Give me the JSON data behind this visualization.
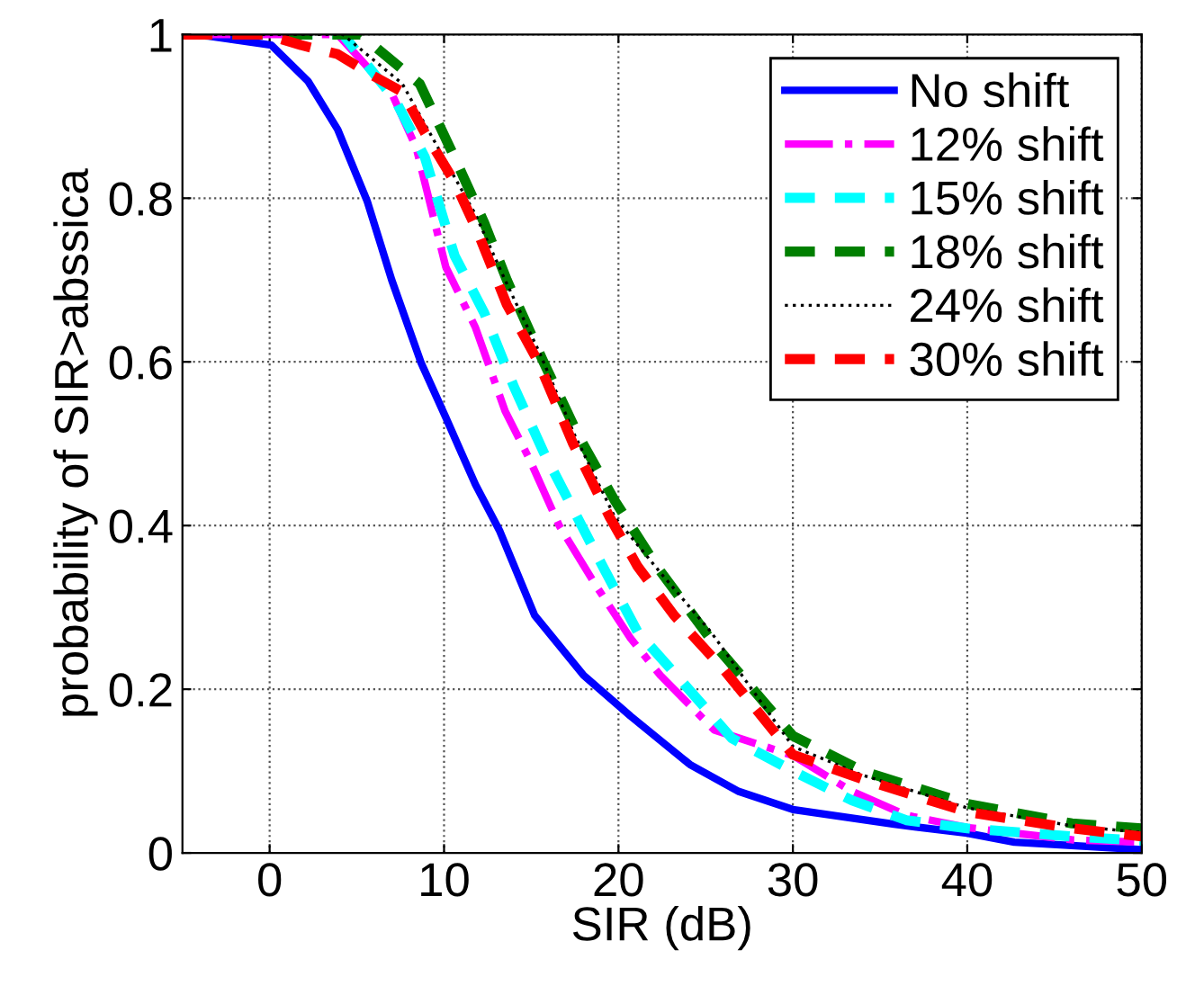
{
  "chart_data": {
    "type": "line",
    "xlabel": "SIR (dB)",
    "ylabel": "probability of SIR>abssica",
    "xlim": [
      -5,
      50
    ],
    "ylim": [
      0,
      1
    ],
    "xticks": [
      0,
      10,
      20,
      30,
      40,
      50
    ],
    "yticks": [
      0,
      0.2,
      0.4,
      0.6,
      0.8,
      1
    ],
    "grid": true,
    "legend": "top right",
    "series": [
      {
        "name": "No shift",
        "color": "#0000ff",
        "line_style": "solid",
        "x": [
          -5,
          -3.5,
          0.1,
          2.2,
          3.9,
          5.6,
          7.0,
          8.7,
          10.1,
          11.8,
          13.2,
          15.2,
          18,
          20.7,
          24.1,
          26.9,
          30,
          35.8,
          40,
          42.7,
          50
        ],
        "values": [
          1.0,
          0.998,
          0.987,
          0.943,
          0.884,
          0.796,
          0.7,
          0.598,
          0.532,
          0.45,
          0.393,
          0.29,
          0.217,
          0.167,
          0.108,
          0.075,
          0.053,
          0.035,
          0.024,
          0.013,
          0.004
        ]
      },
      {
        "name": "12% shift",
        "color": "#ff00ff",
        "line_style": "dashdot",
        "x": [
          -5,
          3.9,
          7,
          8.4,
          10.1,
          11.8,
          13.5,
          14.9,
          16.6,
          18.7,
          20.7,
          22.4,
          25.5,
          30,
          33.4,
          36.5,
          40,
          46,
          50
        ],
        "values": [
          1.0,
          1.0,
          0.928,
          0.862,
          0.716,
          0.642,
          0.54,
          0.481,
          0.4,
          0.327,
          0.262,
          0.217,
          0.15,
          0.119,
          0.075,
          0.046,
          0.031,
          0.016,
          0.013
        ]
      },
      {
        "name": "15% shift",
        "color": "#00ffff",
        "line_style": "dashed",
        "x": [
          -5,
          4.2,
          7.2,
          8.9,
          10.6,
          12.3,
          14,
          15.7,
          17.4,
          19.1,
          21.1,
          23.2,
          26.5,
          30,
          33.4,
          36.5,
          40,
          46,
          50
        ],
        "values": [
          1.0,
          1.0,
          0.92,
          0.85,
          0.73,
          0.66,
          0.57,
          0.49,
          0.42,
          0.35,
          0.27,
          0.22,
          0.14,
          0.1,
          0.064,
          0.04,
          0.03,
          0.02,
          0.015
        ]
      },
      {
        "name": "18% shift",
        "color": "#007f00",
        "line_style": "dashed",
        "x": [
          -5,
          5.2,
          8.6,
          10.6,
          12.3,
          13.6,
          15.7,
          17.7,
          19.8,
          22.2,
          25.5,
          30,
          34,
          40,
          46,
          50
        ],
        "values": [
          1.0,
          1.0,
          0.94,
          0.85,
          0.77,
          0.7,
          0.6,
          0.51,
          0.43,
          0.35,
          0.255,
          0.143,
          0.1,
          0.06,
          0.036,
          0.03
        ]
      },
      {
        "name": "24% shift",
        "color": "#000000",
        "line_style": "dotted",
        "x": [
          -5,
          4.2,
          7.6,
          9.7,
          11.8,
          13.5,
          15.5,
          17.5,
          19.8,
          22.5,
          25.3,
          30,
          34,
          40,
          46,
          50
        ],
        "values": [
          1.0,
          1.0,
          0.94,
          0.86,
          0.78,
          0.7,
          0.61,
          0.51,
          0.41,
          0.34,
          0.27,
          0.13,
          0.095,
          0.055,
          0.033,
          0.025
        ]
      },
      {
        "name": "30% shift",
        "color": "#ff0000",
        "line_style": "dashed",
        "x": [
          -5,
          -0.2,
          1.8,
          3.9,
          5.9,
          7.6,
          8.9,
          10.6,
          11.9,
          13.6,
          15.4,
          17.4,
          19.5,
          21.1,
          23.2,
          26,
          30,
          34,
          40,
          46,
          50
        ],
        "values": [
          1.0,
          1.0,
          0.987,
          0.976,
          0.95,
          0.93,
          0.88,
          0.82,
          0.76,
          0.67,
          0.6,
          0.5,
          0.41,
          0.35,
          0.29,
          0.225,
          0.12,
          0.09,
          0.05,
          0.03,
          0.02
        ]
      }
    ]
  }
}
